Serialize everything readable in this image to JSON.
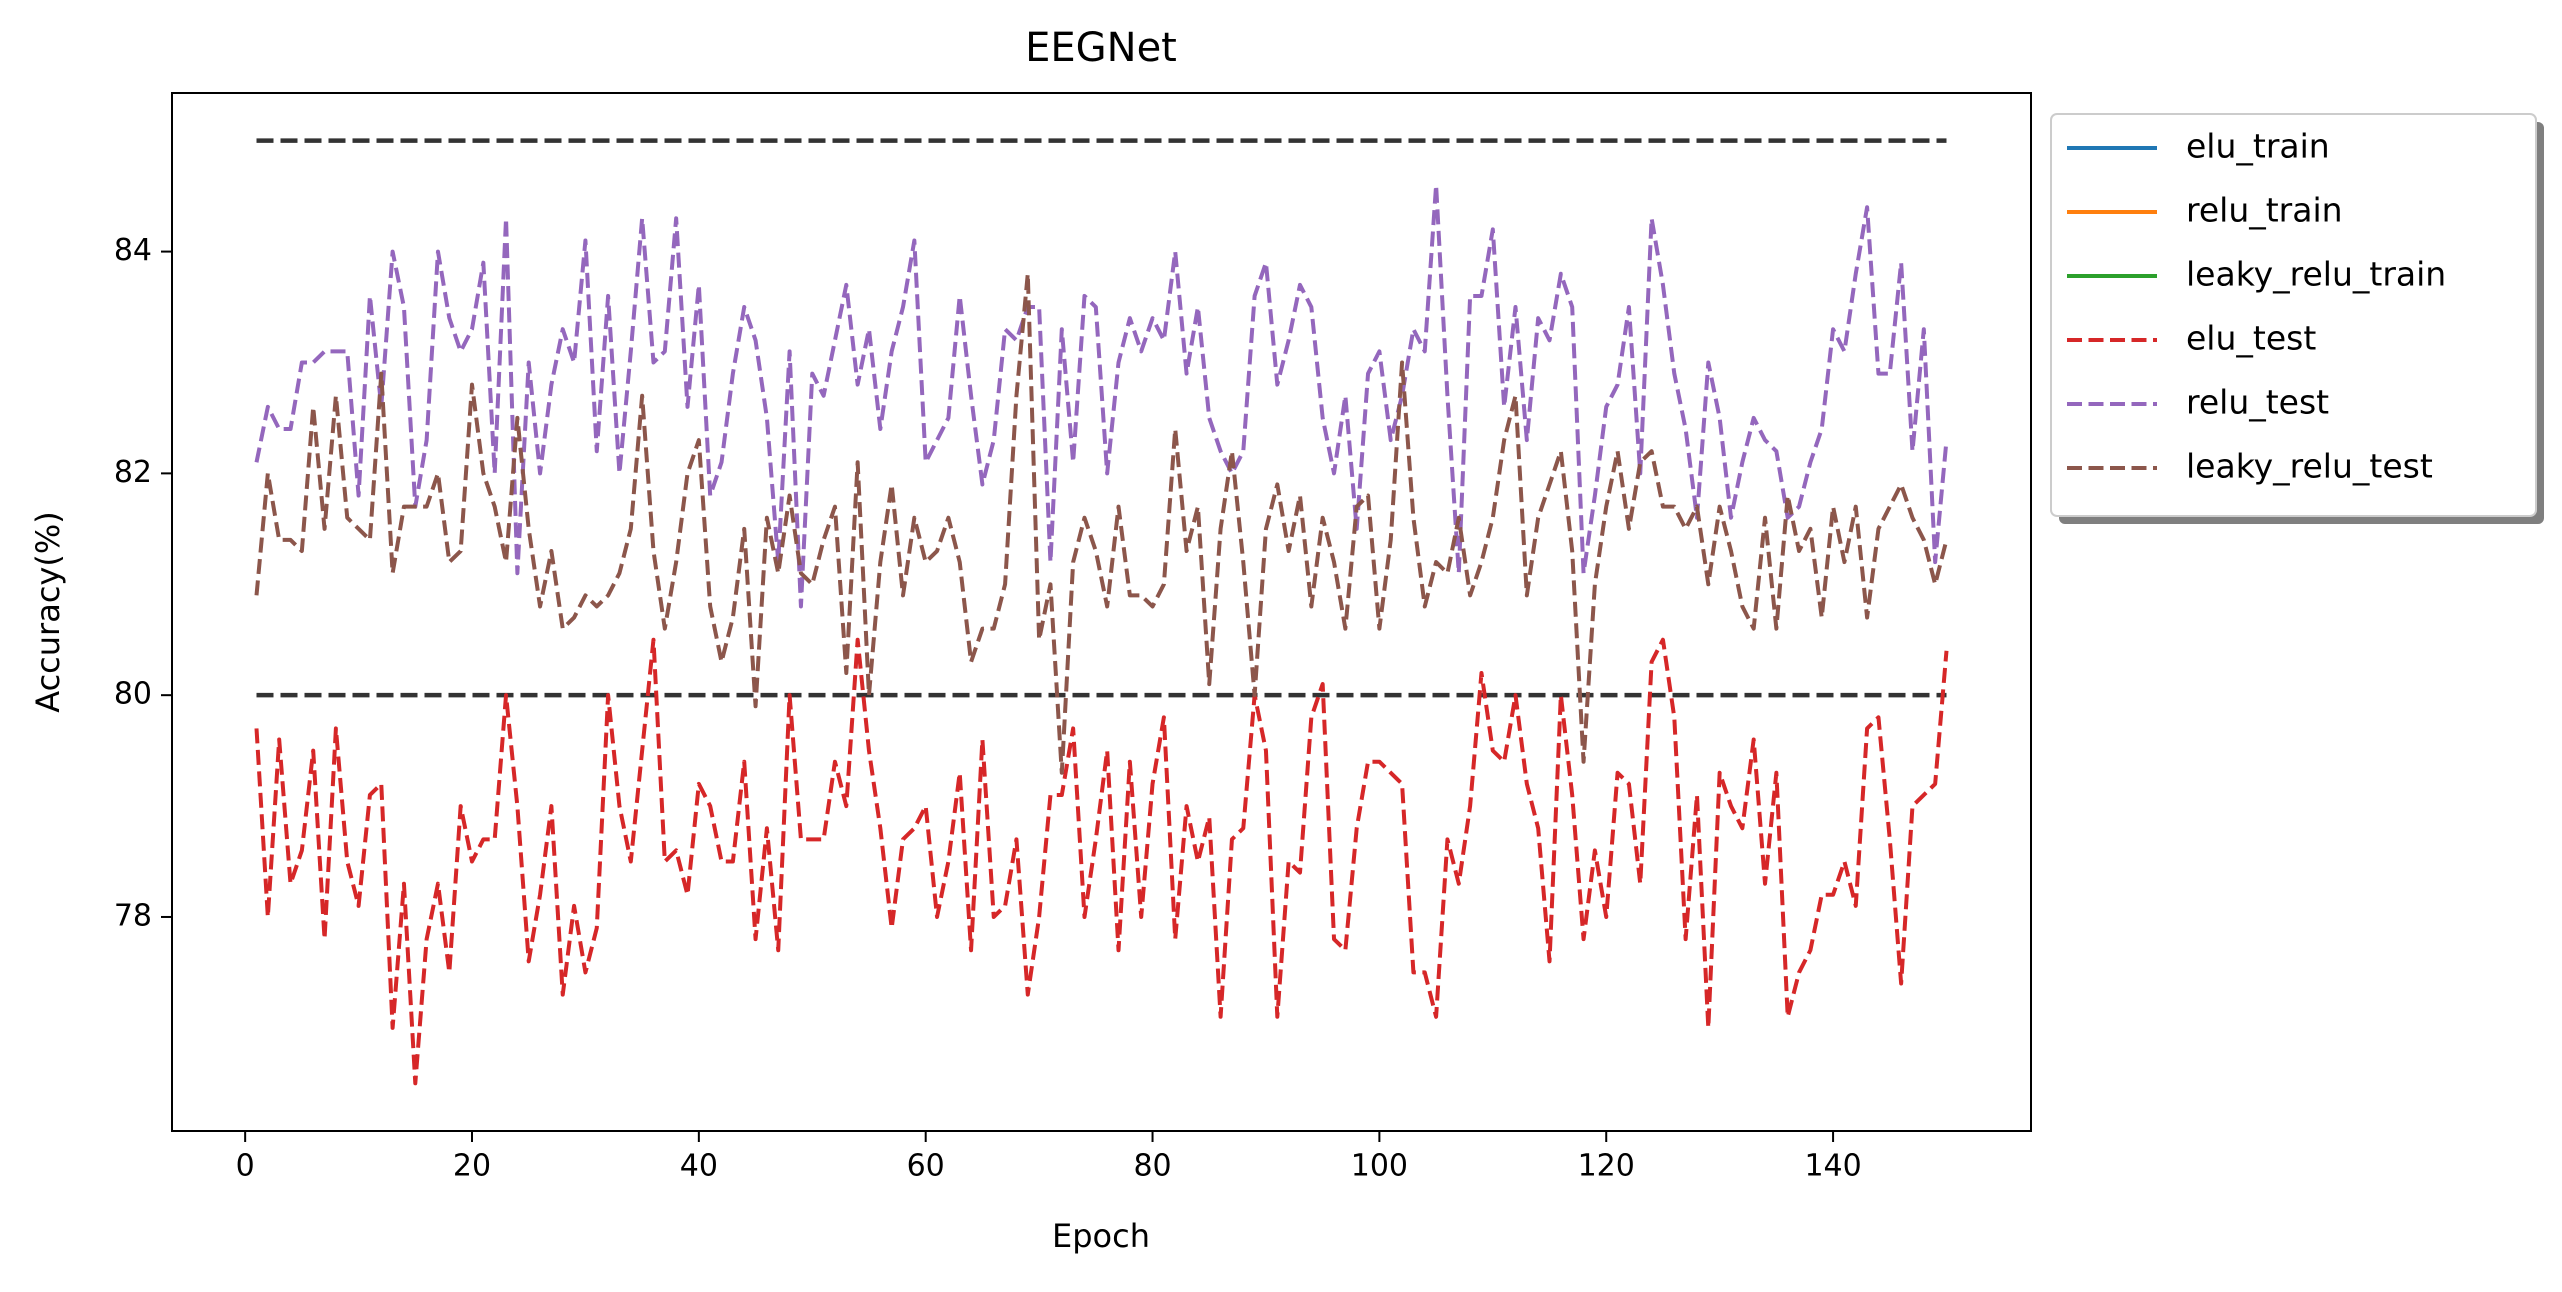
{
  "chart_data": {
    "type": "line",
    "title": "EEGNet",
    "xlabel": "Epoch",
    "ylabel": "Accuracy(%)",
    "xlim": [
      -6.45,
      157.45
    ],
    "ylim": [
      76.07,
      85.43
    ],
    "xticks": [
      0,
      20,
      40,
      60,
      80,
      100,
      120,
      140
    ],
    "yticks": [
      78,
      80,
      82,
      84
    ],
    "grid": false,
    "legend": "outside upper right",
    "hlines": [
      80,
      85
    ],
    "hline_color": "#333333",
    "x": [
      1,
      2,
      3,
      4,
      5,
      6,
      7,
      8,
      9,
      10,
      11,
      12,
      13,
      14,
      15,
      16,
      17,
      18,
      19,
      20,
      21,
      22,
      23,
      24,
      25,
      26,
      27,
      28,
      29,
      30,
      31,
      32,
      33,
      34,
      35,
      36,
      37,
      38,
      39,
      40,
      41,
      42,
      43,
      44,
      45,
      46,
      47,
      48,
      49,
      50,
      51,
      52,
      53,
      54,
      55,
      56,
      57,
      58,
      59,
      60,
      61,
      62,
      63,
      64,
      65,
      66,
      67,
      68,
      69,
      70,
      71,
      72,
      73,
      74,
      75,
      76,
      77,
      78,
      79,
      80,
      81,
      82,
      83,
      84,
      85,
      86,
      87,
      88,
      89,
      90,
      91,
      92,
      93,
      94,
      95,
      96,
      97,
      98,
      99,
      100,
      101,
      102,
      103,
      104,
      105,
      106,
      107,
      108,
      109,
      110,
      111,
      112,
      113,
      114,
      115,
      116,
      117,
      118,
      119,
      120,
      121,
      122,
      123,
      124,
      125,
      126,
      127,
      128,
      129,
      130,
      131,
      132,
      133,
      134,
      135,
      136,
      137,
      138,
      139,
      140,
      141,
      142,
      143,
      144,
      145,
      146,
      147,
      148,
      149,
      150
    ],
    "series": [
      {
        "name": "elu_train",
        "color": "#1f77b4",
        "linestyle": "solid",
        "values": [
          null,
          null,
          null,
          null,
          null,
          null,
          null,
          null,
          null,
          null,
          null,
          null,
          null,
          null,
          null,
          null,
          null,
          null,
          null,
          null,
          null,
          null,
          null,
          null,
          null,
          null,
          null,
          null,
          null,
          null,
          null,
          null,
          null,
          null,
          null,
          null,
          null,
          null,
          null,
          null,
          null,
          null,
          null,
          null,
          null,
          null,
          null,
          null,
          null,
          null,
          null,
          null,
          null,
          null,
          null,
          null,
          null,
          null,
          null,
          null,
          null,
          null,
          null,
          null,
          null,
          null,
          null,
          null,
          null,
          null,
          null,
          null,
          null,
          null,
          null,
          null,
          null,
          null,
          null,
          null,
          null,
          null,
          null,
          null,
          null,
          null,
          null,
          null,
          null,
          null,
          null,
          null,
          null,
          null,
          null,
          null,
          null,
          null,
          null,
          null,
          null,
          null,
          null,
          null,
          null,
          null,
          null,
          null,
          null,
          null,
          null,
          null,
          null,
          null,
          null,
          null,
          null,
          null,
          null,
          null,
          null,
          null,
          null,
          null,
          null,
          null,
          null,
          null,
          null,
          null,
          null,
          null,
          null,
          null,
          null,
          null,
          null,
          null,
          null,
          null,
          null,
          null,
          null,
          null,
          null,
          null,
          null,
          null,
          null,
          null
        ]
      },
      {
        "name": "relu_train",
        "color": "#ff7f0e",
        "linestyle": "solid",
        "values": [
          null,
          null,
          null,
          null,
          null,
          null,
          null,
          null,
          null,
          null,
          null,
          null,
          null,
          null,
          null,
          null,
          null,
          null,
          null,
          null,
          null,
          null,
          null,
          null,
          null,
          null,
          null,
          null,
          null,
          null,
          null,
          null,
          null,
          null,
          null,
          null,
          null,
          null,
          null,
          null,
          null,
          null,
          null,
          null,
          null,
          null,
          null,
          null,
          null,
          null,
          null,
          null,
          null,
          null,
          null,
          null,
          null,
          null,
          null,
          null,
          null,
          null,
          null,
          null,
          null,
          null,
          null,
          null,
          null,
          null,
          null,
          null,
          null,
          null,
          null,
          null,
          null,
          null,
          null,
          null,
          null,
          null,
          null,
          null,
          null,
          null,
          null,
          null,
          null,
          null,
          null,
          null,
          null,
          null,
          null,
          null,
          null,
          null,
          null,
          null,
          null,
          null,
          null,
          null,
          null,
          null,
          null,
          null,
          null,
          null,
          null,
          null,
          null,
          null,
          null,
          null,
          null,
          null,
          null,
          null,
          null,
          null,
          null,
          null,
          null,
          null,
          null,
          null,
          null,
          null,
          null,
          null,
          null,
          null,
          null,
          null,
          null,
          null,
          null,
          null,
          null,
          null,
          null,
          null,
          null,
          null,
          null,
          null,
          null,
          null
        ]
      },
      {
        "name": "leaky_relu_train",
        "color": "#2ca02c",
        "linestyle": "solid",
        "values": [
          null,
          null,
          null,
          null,
          null,
          null,
          null,
          null,
          null,
          null,
          null,
          null,
          null,
          null,
          null,
          null,
          null,
          null,
          null,
          null,
          null,
          null,
          null,
          null,
          null,
          null,
          null,
          null,
          null,
          null,
          null,
          null,
          null,
          null,
          null,
          null,
          null,
          null,
          null,
          null,
          null,
          null,
          null,
          null,
          null,
          null,
          null,
          null,
          null,
          null,
          null,
          null,
          null,
          null,
          null,
          null,
          null,
          null,
          null,
          null,
          null,
          null,
          null,
          null,
          null,
          null,
          null,
          null,
          null,
          null,
          null,
          null,
          null,
          null,
          null,
          null,
          null,
          null,
          null,
          null,
          null,
          null,
          null,
          null,
          null,
          null,
          null,
          null,
          null,
          null,
          null,
          null,
          null,
          null,
          null,
          null,
          null,
          null,
          null,
          null,
          null,
          null,
          null,
          null,
          null,
          null,
          null,
          null,
          null,
          null,
          null,
          null,
          null,
          null,
          null,
          null,
          null,
          null,
          null,
          null,
          null,
          null,
          null,
          null,
          null,
          null,
          null,
          null,
          null,
          null,
          null,
          null,
          null,
          null,
          null,
          null,
          null,
          null,
          null,
          null,
          null,
          null,
          null,
          null,
          null,
          null,
          null,
          null,
          null,
          null
        ]
      },
      {
        "name": "elu_test",
        "color": "#d62728",
        "linestyle": "dashed",
        "values": [
          79.7,
          78.0,
          79.6,
          78.3,
          78.6,
          79.5,
          77.8,
          79.7,
          78.5,
          78.1,
          79.1,
          79.2,
          77.0,
          78.3,
          76.5,
          77.8,
          78.3,
          77.5,
          79.0,
          78.5,
          78.7,
          78.7,
          80.0,
          79.0,
          77.6,
          78.2,
          79.0,
          77.3,
          78.1,
          77.5,
          77.9,
          80.0,
          79.0,
          78.5,
          79.5,
          80.5,
          78.5,
          78.6,
          78.2,
          79.2,
          79.0,
          78.5,
          78.5,
          79.4,
          77.8,
          78.8,
          77.7,
          80.0,
          78.7,
          78.7,
          78.7,
          79.4,
          79.0,
          80.5,
          79.5,
          78.8,
          77.9,
          78.7,
          78.8,
          79.0,
          78.0,
          78.5,
          79.3,
          77.7,
          79.6,
          78.0,
          78.1,
          78.7,
          77.3,
          78.0,
          79.1,
          79.1,
          79.7,
          78.0,
          78.7,
          79.5,
          77.7,
          79.4,
          78.0,
          79.2,
          79.8,
          77.8,
          79.0,
          78.5,
          78.9,
          77.1,
          78.7,
          78.8,
          80.0,
          79.5,
          77.1,
          78.5,
          78.4,
          79.8,
          80.1,
          77.8,
          77.7,
          78.8,
          79.4,
          79.4,
          79.3,
          79.2,
          77.5,
          77.5,
          77.1,
          78.7,
          78.3,
          79.0,
          80.2,
          79.5,
          79.4,
          80.0,
          79.2,
          78.8,
          77.6,
          80.0,
          79.1,
          77.8,
          78.6,
          78.0,
          79.3,
          79.2,
          78.3,
          80.3,
          80.5,
          79.8,
          77.8,
          79.1,
          77.0,
          79.3,
          79.0,
          78.8,
          79.6,
          78.3,
          79.3,
          77.1,
          77.5,
          77.7,
          78.2,
          78.2,
          78.5,
          78.1,
          79.7,
          79.8,
          78.7,
          77.4,
          79.0,
          79.1,
          79.2,
          80.4
        ]
      },
      {
        "name": "relu_test",
        "color": "#9467bd",
        "linestyle": "dashed",
        "values": [
          82.1,
          82.6,
          82.4,
          82.4,
          83.0,
          83.0,
          83.1,
          83.1,
          83.1,
          81.8,
          83.6,
          82.6,
          84.0,
          83.5,
          81.7,
          82.3,
          84.0,
          83.4,
          83.1,
          83.3,
          83.9,
          82.0,
          84.3,
          81.1,
          83.0,
          82.0,
          82.8,
          83.3,
          83.0,
          84.1,
          82.2,
          83.6,
          82.0,
          83.1,
          84.3,
          83.0,
          83.1,
          84.3,
          82.6,
          83.7,
          81.8,
          82.1,
          82.9,
          83.5,
          83.2,
          82.5,
          81.2,
          83.1,
          80.8,
          82.9,
          82.7,
          83.2,
          83.7,
          82.8,
          83.3,
          82.4,
          83.1,
          83.5,
          84.1,
          82.1,
          82.3,
          82.5,
          83.6,
          82.7,
          81.9,
          82.3,
          83.3,
          83.2,
          83.5,
          83.5,
          81.2,
          83.3,
          82.1,
          83.6,
          83.5,
          82.0,
          83.0,
          83.4,
          83.1,
          83.4,
          83.2,
          84.0,
          82.9,
          83.5,
          82.5,
          82.2,
          82.0,
          82.2,
          83.6,
          83.9,
          82.8,
          83.2,
          83.7,
          83.5,
          82.5,
          82.0,
          82.7,
          81.5,
          82.9,
          83.1,
          82.3,
          82.7,
          83.3,
          83.1,
          84.6,
          82.7,
          81.1,
          83.6,
          83.6,
          84.2,
          82.6,
          83.5,
          82.3,
          83.4,
          83.2,
          83.8,
          83.5,
          81.1,
          81.8,
          82.6,
          82.8,
          83.5,
          82.0,
          84.3,
          83.7,
          82.9,
          82.4,
          81.6,
          83.0,
          82.5,
          81.6,
          82.1,
          82.5,
          82.3,
          82.2,
          81.6,
          81.7,
          82.1,
          82.4,
          83.3,
          83.1,
          83.8,
          84.4,
          82.9,
          82.9,
          83.9,
          82.2,
          83.3,
          81.2,
          82.3
        ]
      },
      {
        "name": "leaky_relu_test",
        "color": "#8c564b",
        "linestyle": "dashed",
        "values": [
          80.9,
          82.0,
          81.4,
          81.4,
          81.3,
          82.6,
          81.5,
          82.7,
          81.6,
          81.5,
          81.4,
          82.9,
          81.1,
          81.7,
          81.7,
          81.7,
          82.0,
          81.2,
          81.3,
          82.8,
          82.0,
          81.7,
          81.2,
          82.5,
          81.5,
          80.8,
          81.3,
          80.6,
          80.7,
          80.9,
          80.8,
          80.9,
          81.1,
          81.5,
          82.7,
          81.3,
          80.6,
          81.2,
          82.0,
          82.3,
          80.8,
          80.3,
          80.7,
          81.5,
          79.9,
          81.6,
          81.1,
          81.8,
          81.1,
          81.0,
          81.4,
          81.7,
          80.2,
          82.1,
          80.0,
          81.2,
          81.9,
          80.9,
          81.6,
          81.2,
          81.3,
          81.6,
          81.2,
          80.3,
          80.6,
          80.6,
          81.0,
          82.7,
          83.8,
          80.5,
          81.0,
          79.3,
          81.2,
          81.6,
          81.3,
          80.8,
          81.7,
          80.9,
          80.9,
          80.8,
          81.0,
          82.4,
          81.3,
          81.7,
          80.1,
          81.5,
          82.2,
          81.2,
          80.0,
          81.5,
          81.9,
          81.3,
          81.8,
          80.8,
          81.6,
          81.2,
          80.6,
          81.7,
          81.8,
          80.6,
          81.4,
          83.0,
          81.6,
          80.8,
          81.2,
          81.1,
          81.6,
          80.9,
          81.2,
          81.6,
          82.3,
          82.7,
          80.9,
          81.6,
          81.9,
          82.2,
          81.3,
          79.4,
          81.0,
          81.7,
          82.2,
          81.5,
          82.1,
          82.2,
          81.7,
          81.7,
          81.5,
          81.7,
          81.0,
          81.7,
          81.3,
          80.8,
          80.6,
          81.6,
          80.6,
          81.8,
          81.3,
          81.5,
          80.7,
          81.7,
          81.2,
          81.7,
          80.7,
          81.5,
          81.7,
          81.9,
          81.6,
          81.4,
          81.0,
          81.4
        ]
      }
    ]
  }
}
